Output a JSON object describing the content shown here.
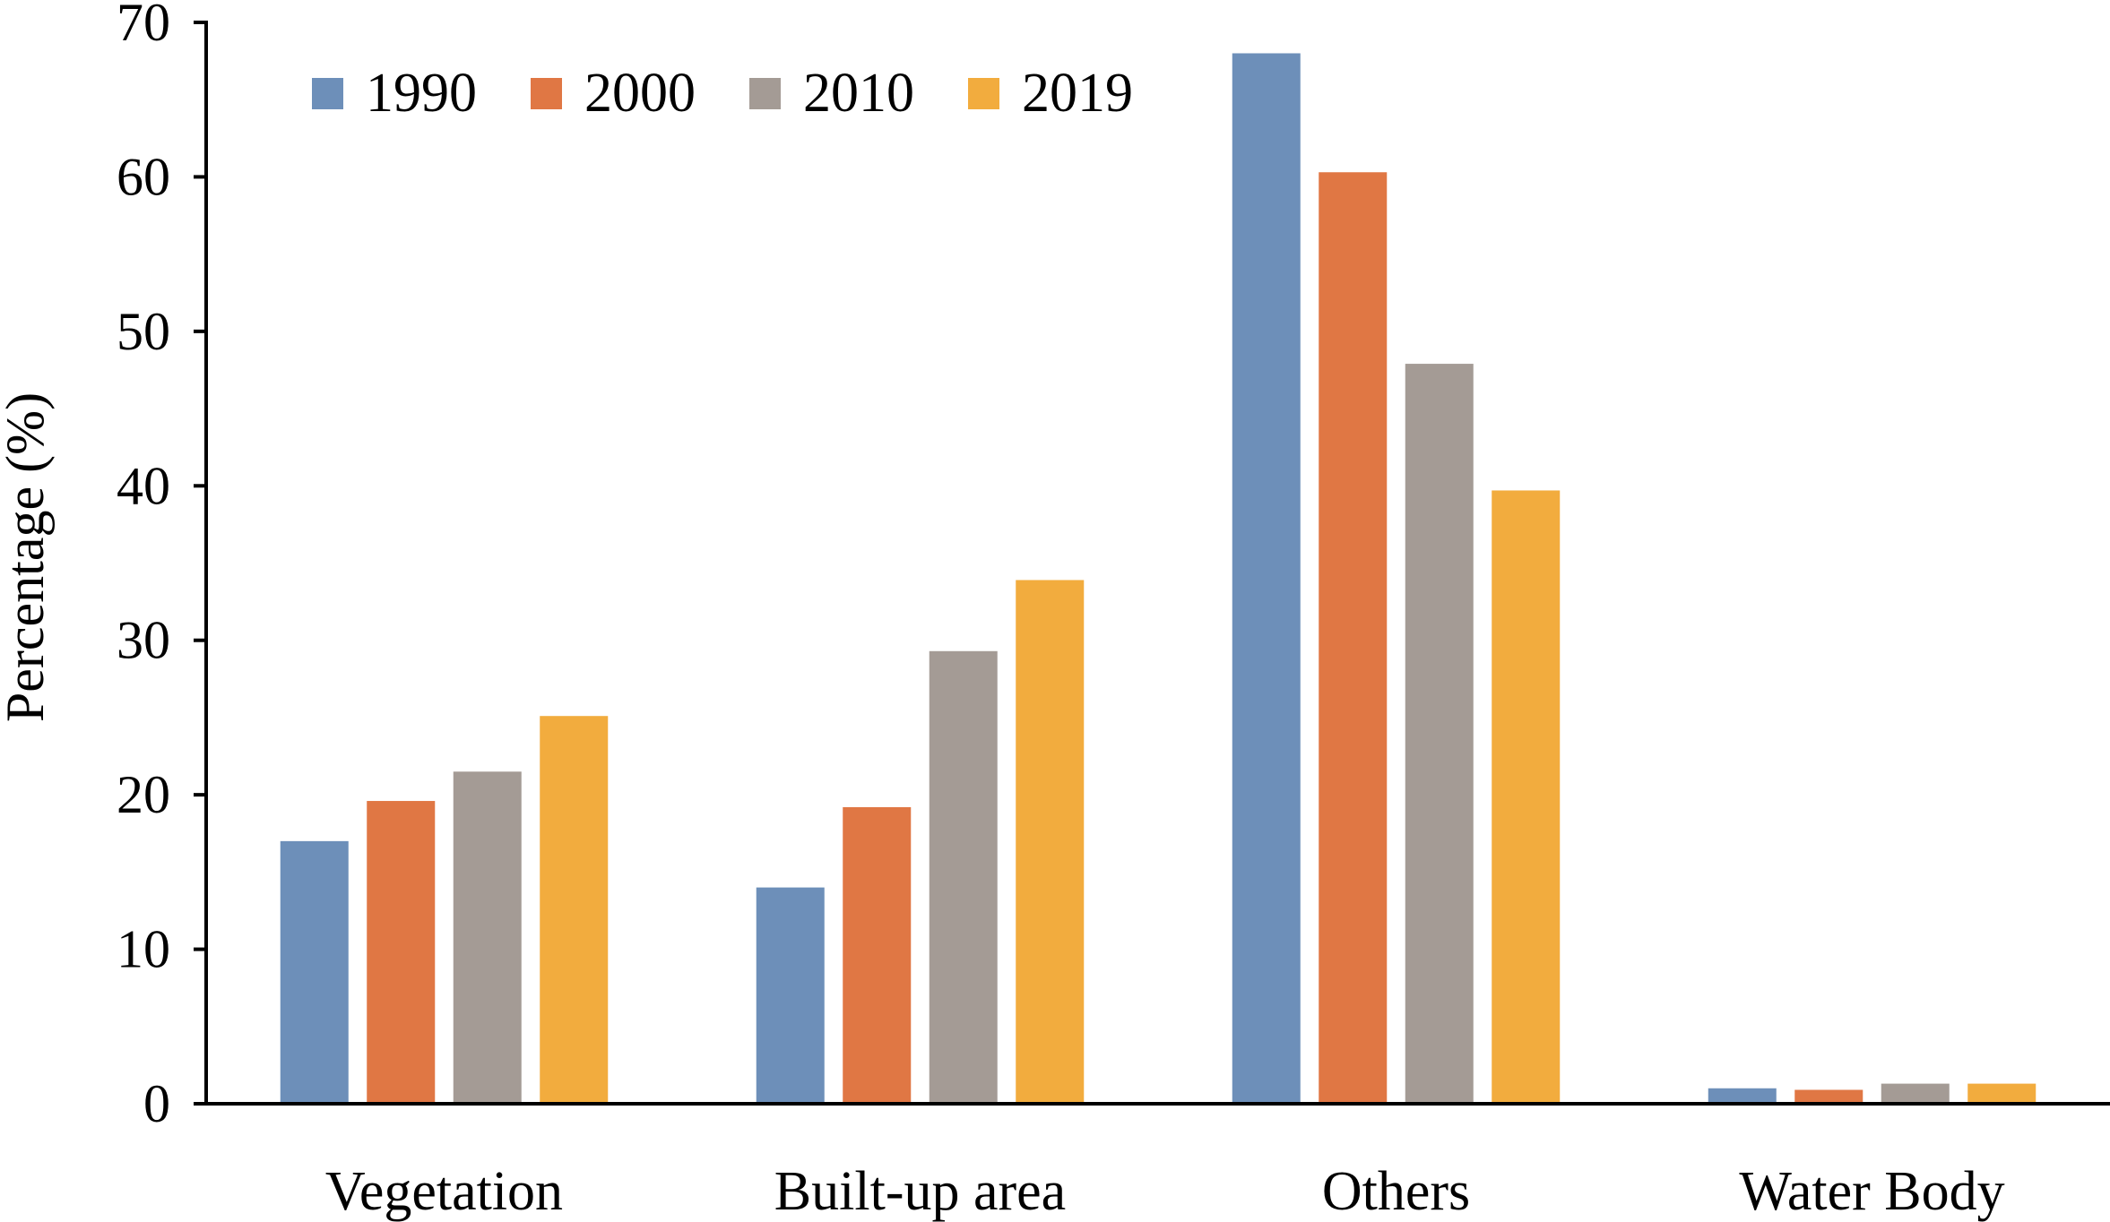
{
  "chart_data": {
    "type": "bar",
    "title": "",
    "xlabel": "",
    "ylabel": "Percentage (%)",
    "ylim": [
      0,
      70
    ],
    "yticks": [
      "0",
      "10",
      "20",
      "30",
      "40",
      "50",
      "60",
      "70"
    ],
    "grid": false,
    "legend_position": "top-left",
    "categories": [
      "Vegetation",
      "Built-up area",
      "Others",
      "Water Body"
    ],
    "series": [
      {
        "name": "1990",
        "color": "#6d8fb9",
        "values": [
          17.0,
          14.0,
          68.0,
          1.0
        ]
      },
      {
        "name": "2000",
        "color": "#e07744",
        "values": [
          19.6,
          19.2,
          60.3,
          0.9
        ]
      },
      {
        "name": "2010",
        "color": "#a49b95",
        "values": [
          21.5,
          29.3,
          47.9,
          1.3
        ]
      },
      {
        "name": "2019",
        "color": "#f2ac3e",
        "values": [
          25.1,
          33.9,
          39.7,
          1.3
        ]
      }
    ]
  }
}
